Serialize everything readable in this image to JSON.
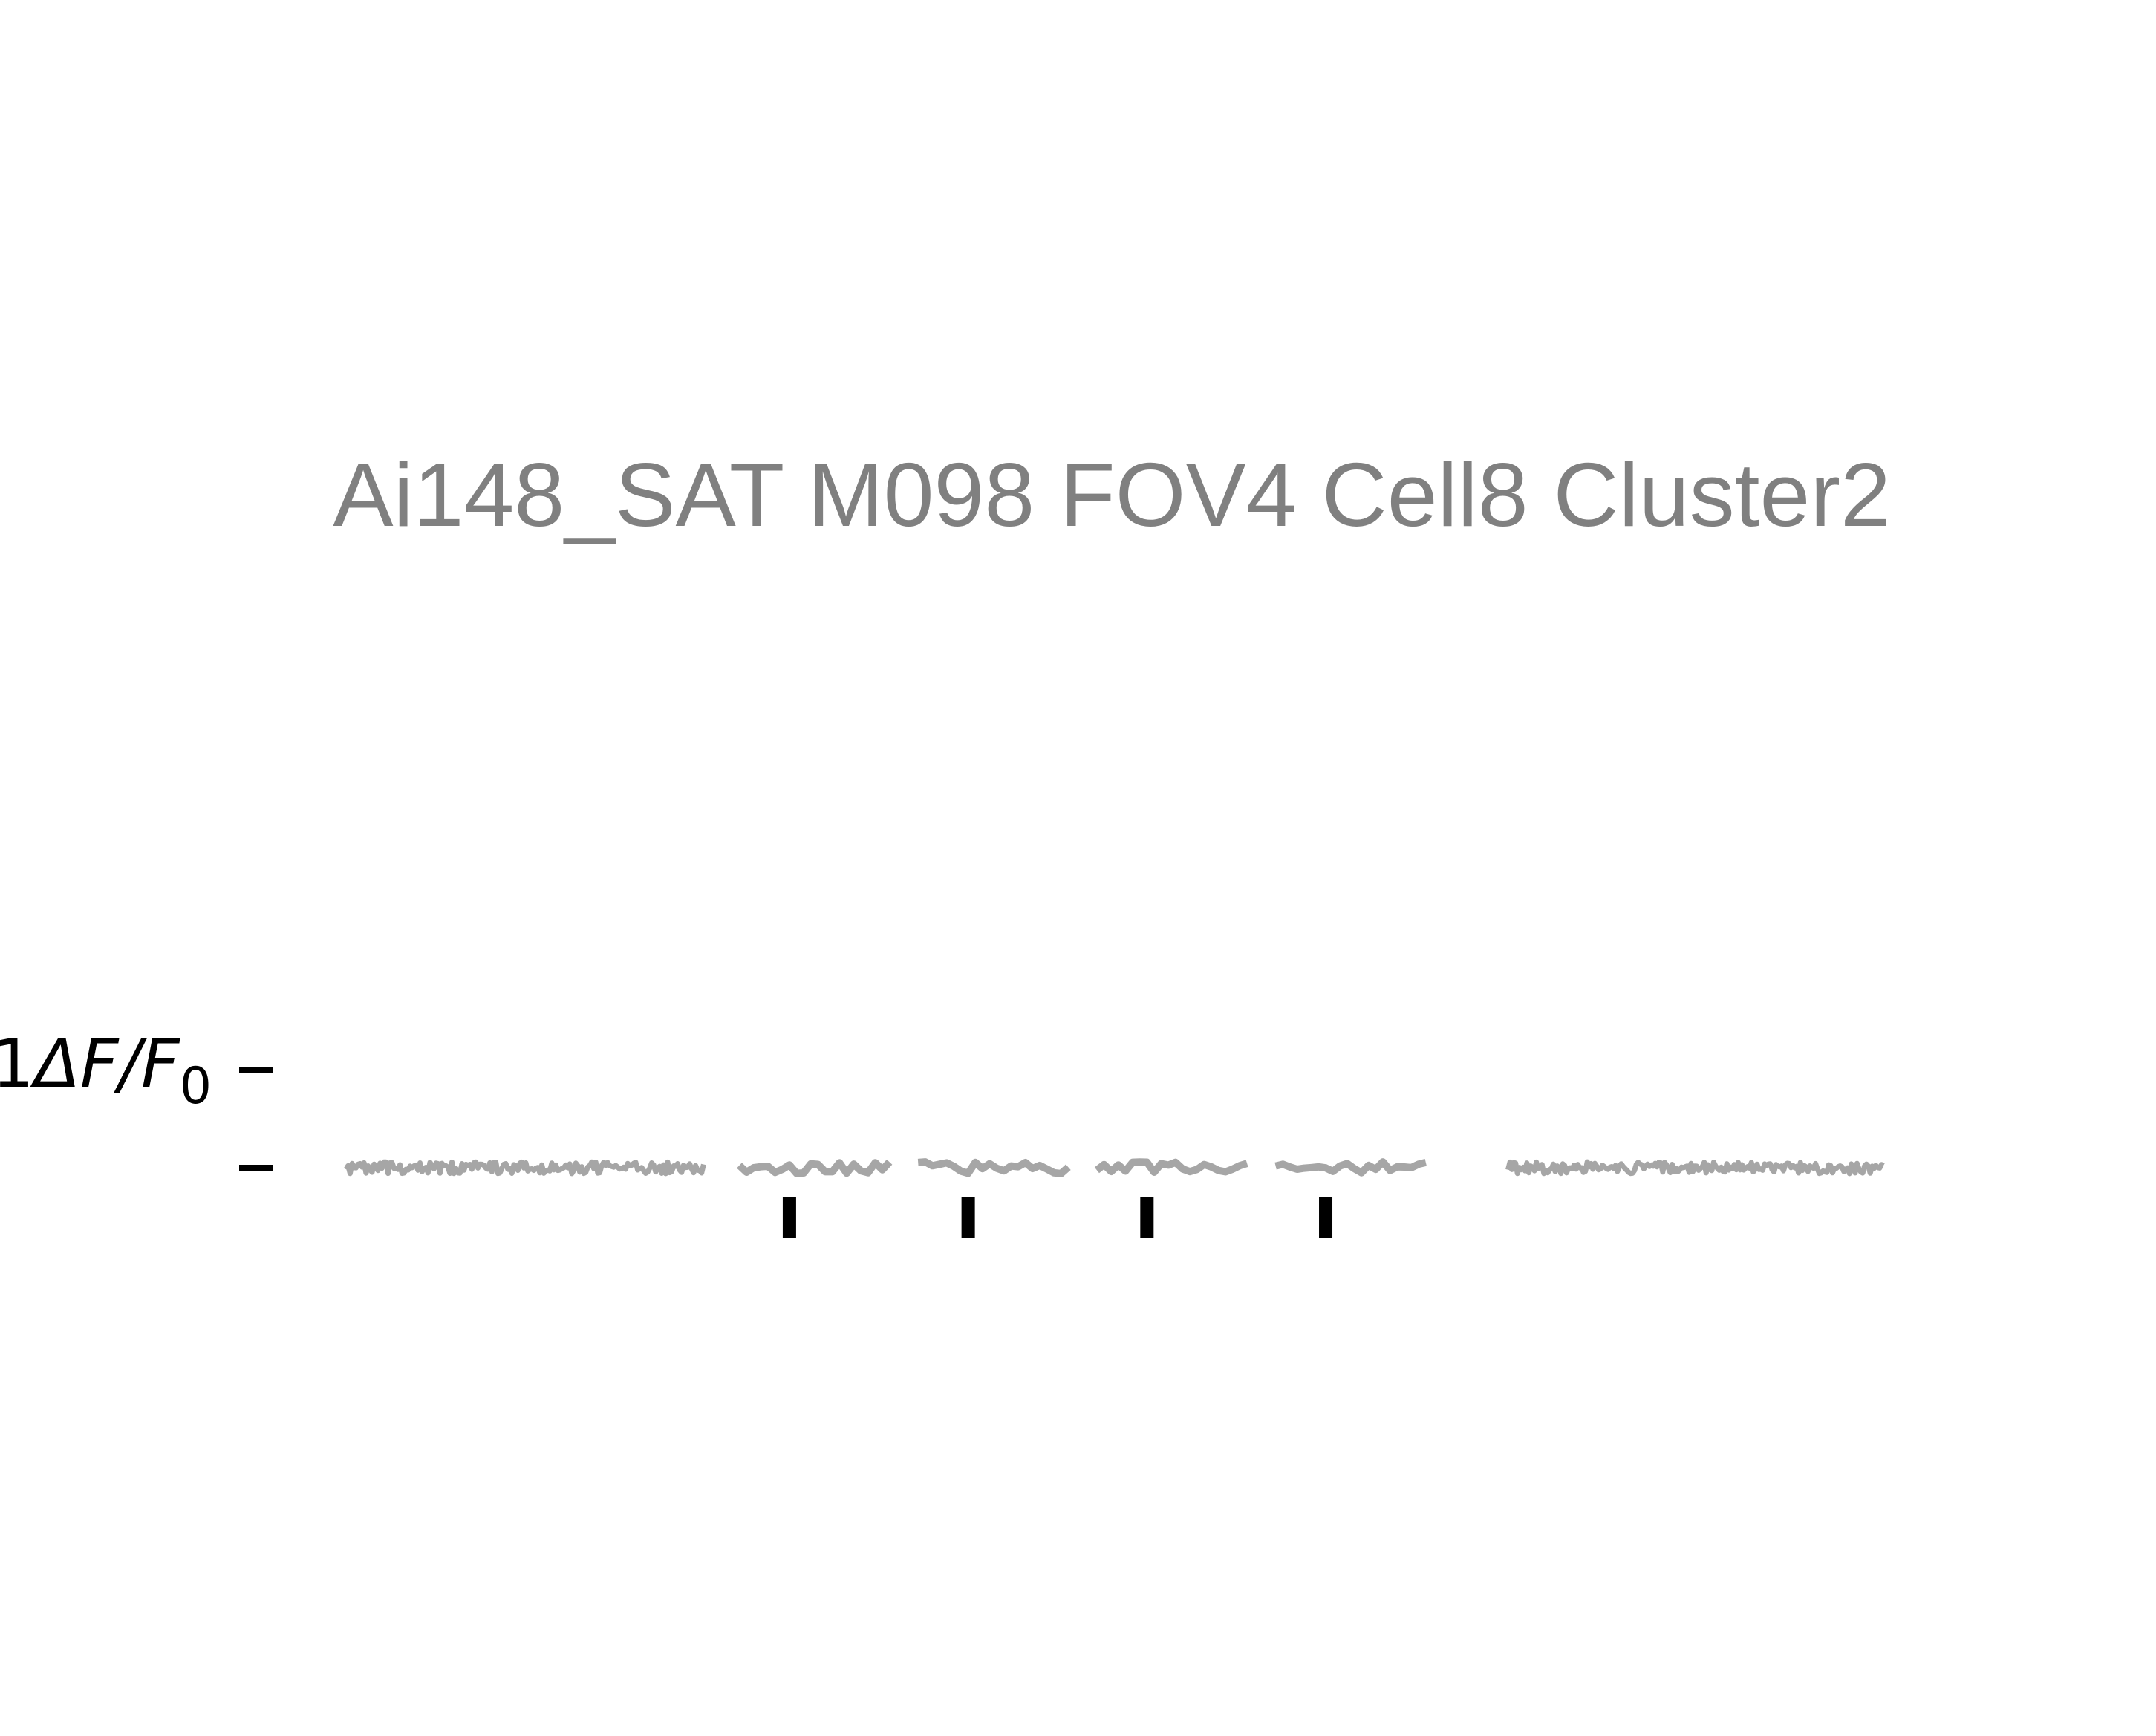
{
  "chart_data": {
    "type": "line",
    "title": "Ai148_SAT M098 FOV4 Cell8 Cluster2",
    "ylabel": {
      "prefix": "1",
      "main": "ΔF/F",
      "subscript": "0"
    },
    "grid": false,
    "legend": "none",
    "colors": {
      "trace": "#a6a6a6",
      "title": "#808080",
      "event_marker": "#000000",
      "scale_bar": "#000000"
    },
    "scale_bar": {
      "ylim": [
        0,
        1
      ],
      "ticks": [
        0,
        1
      ]
    },
    "baseline": 0,
    "noise_amplitude": 0.06,
    "series": [
      {
        "segment": "pre-event",
        "t_start": 0.0,
        "t_end": 10.0,
        "points": 180,
        "style": "fine"
      },
      {
        "segment": "event-1",
        "t_start": 11.0,
        "t_end": 15.2,
        "points": 22,
        "style": "coarse",
        "event_time": 12.4
      },
      {
        "segment": "event-2",
        "t_start": 16.0,
        "t_end": 20.2,
        "points": 22,
        "style": "coarse",
        "event_time": 17.4
      },
      {
        "segment": "event-3",
        "t_start": 21.0,
        "t_end": 25.2,
        "points": 22,
        "style": "coarse",
        "event_time": 22.4
      },
      {
        "segment": "event-4",
        "t_start": 26.0,
        "t_end": 30.2,
        "points": 22,
        "style": "coarse",
        "event_time": 27.4
      },
      {
        "segment": "post-event",
        "t_start": 32.5,
        "t_end": 43.0,
        "points": 200,
        "style": "fine"
      }
    ]
  }
}
